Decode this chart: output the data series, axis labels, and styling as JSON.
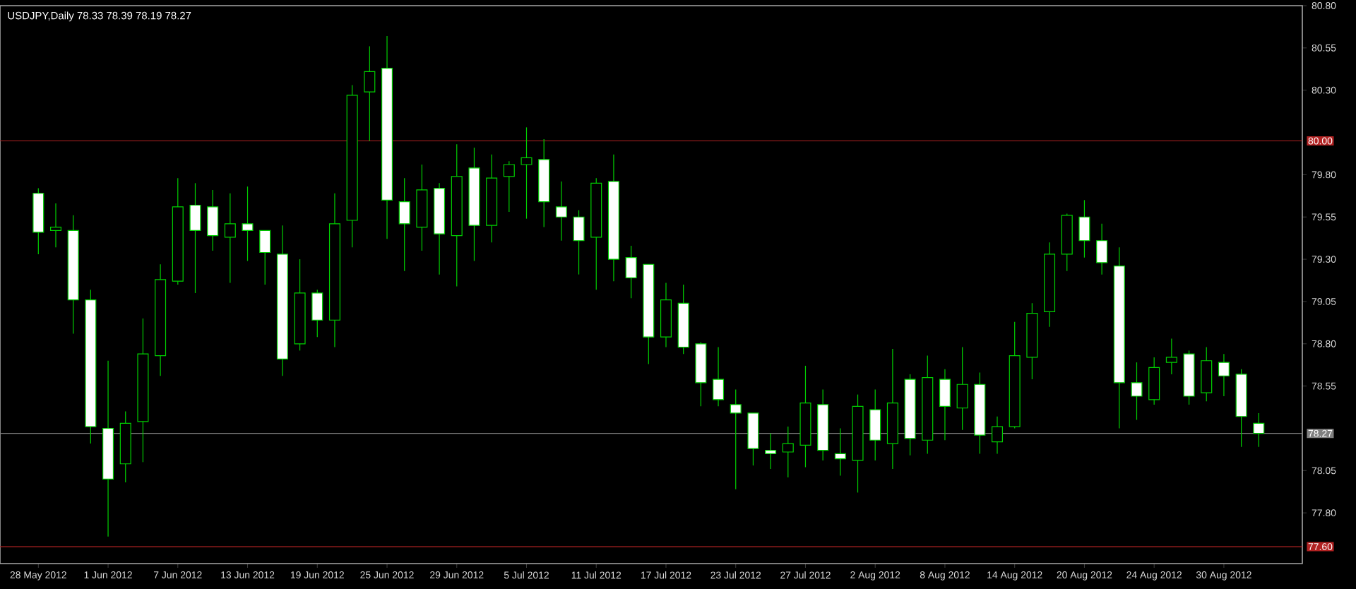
{
  "chart_data": {
    "type": "candlestick",
    "title": "USDJPY,Daily  78.33 78.39 78.19 78.27",
    "color": "#00d000",
    "categories": [
      "28 May 2012",
      null,
      null,
      null,
      "1 Jun 2012",
      null,
      null,
      null,
      "7 Jun 2012",
      null,
      null,
      null,
      "13 Jun 2012",
      null,
      null,
      null,
      "19 Jun 2012",
      null,
      null,
      null,
      "25 Jun 2012",
      null,
      null,
      null,
      "29 Jun 2012",
      null,
      null,
      null,
      "5 Jul 2012",
      null,
      null,
      null,
      "11 Jul 2012",
      null,
      null,
      null,
      "17 Jul 2012",
      null,
      null,
      null,
      "23 Jul 2012",
      null,
      null,
      null,
      "27 Jul 2012",
      null,
      null,
      null,
      "2 Aug 2012",
      null,
      null,
      null,
      "8 Aug 2012",
      null,
      null,
      null,
      "14 Aug 2012",
      null,
      null,
      null,
      "20 Aug 2012",
      null,
      null,
      null,
      "24 Aug 2012",
      null,
      null,
      null,
      "30 Aug 2012",
      null,
      null
    ],
    "ohlc": [
      [
        79.69,
        79.72,
        79.33,
        79.46
      ],
      [
        79.47,
        79.63,
        79.37,
        79.49
      ],
      [
        79.47,
        79.56,
        78.86,
        79.06
      ],
      [
        79.06,
        79.12,
        78.21,
        78.31
      ],
      [
        78.3,
        78.7,
        77.66,
        78.0
      ],
      [
        78.09,
        78.4,
        77.98,
        78.33
      ],
      [
        78.34,
        78.95,
        78.1,
        78.74
      ],
      [
        78.73,
        79.27,
        78.61,
        79.18
      ],
      [
        79.17,
        79.78,
        79.15,
        79.61
      ],
      [
        79.62,
        79.75,
        79.1,
        79.47
      ],
      [
        79.61,
        79.71,
        79.35,
        79.44
      ],
      [
        79.43,
        79.69,
        79.16,
        79.51
      ],
      [
        79.51,
        79.73,
        79.29,
        79.47
      ],
      [
        79.47,
        79.47,
        79.15,
        79.34
      ],
      [
        79.33,
        79.5,
        78.61,
        78.71
      ],
      [
        78.8,
        79.3,
        78.76,
        79.1
      ],
      [
        79.1,
        79.12,
        78.84,
        78.94
      ],
      [
        78.94,
        79.69,
        78.78,
        79.51
      ],
      [
        79.53,
        80.33,
        79.37,
        80.27
      ],
      [
        80.29,
        80.56,
        80.0,
        80.41
      ],
      [
        80.43,
        80.62,
        79.42,
        79.65
      ],
      [
        79.64,
        79.78,
        79.23,
        79.51
      ],
      [
        79.49,
        79.86,
        79.35,
        79.71
      ],
      [
        79.72,
        79.75,
        79.21,
        79.45
      ],
      [
        79.44,
        79.98,
        79.14,
        79.79
      ],
      [
        79.84,
        79.96,
        79.29,
        79.5
      ],
      [
        79.5,
        79.92,
        79.4,
        79.78
      ],
      [
        79.79,
        79.88,
        79.58,
        79.86
      ],
      [
        79.86,
        80.08,
        79.54,
        79.9
      ],
      [
        79.89,
        80.01,
        79.49,
        79.64
      ],
      [
        79.61,
        79.76,
        79.41,
        79.55
      ],
      [
        79.55,
        79.59,
        79.21,
        79.41
      ],
      [
        79.43,
        79.78,
        79.12,
        79.75
      ],
      [
        79.76,
        79.92,
        79.17,
        79.3
      ],
      [
        79.31,
        79.38,
        79.07,
        79.19
      ],
      [
        79.27,
        79.27,
        78.68,
        78.84
      ],
      [
        78.84,
        79.16,
        78.78,
        79.06
      ],
      [
        79.04,
        79.15,
        78.74,
        78.78
      ],
      [
        78.8,
        78.81,
        78.43,
        78.57
      ],
      [
        78.59,
        78.78,
        78.43,
        78.47
      ],
      [
        78.44,
        78.53,
        77.94,
        78.39
      ],
      [
        78.39,
        78.39,
        78.08,
        78.18
      ],
      [
        78.17,
        78.27,
        78.06,
        78.15
      ],
      [
        78.16,
        78.31,
        78.01,
        78.21
      ],
      [
        78.2,
        78.67,
        78.07,
        78.45
      ],
      [
        78.44,
        78.53,
        78.11,
        78.17
      ],
      [
        78.15,
        78.3,
        78.02,
        78.12
      ],
      [
        78.11,
        78.5,
        77.92,
        78.43
      ],
      [
        78.41,
        78.53,
        78.11,
        78.23
      ],
      [
        78.21,
        78.77,
        78.06,
        78.45
      ],
      [
        78.59,
        78.62,
        78.14,
        78.24
      ],
      [
        78.23,
        78.73,
        78.15,
        78.6
      ],
      [
        78.59,
        78.65,
        78.23,
        78.43
      ],
      [
        78.42,
        78.78,
        78.29,
        78.56
      ],
      [
        78.56,
        78.63,
        78.15,
        78.26
      ],
      [
        78.22,
        78.37,
        78.15,
        78.31
      ],
      [
        78.31,
        78.93,
        78.3,
        78.73
      ],
      [
        78.72,
        79.04,
        78.59,
        78.98
      ],
      [
        78.99,
        79.4,
        78.9,
        79.33
      ],
      [
        79.33,
        79.57,
        79.23,
        79.56
      ],
      [
        79.55,
        79.65,
        79.31,
        79.41
      ],
      [
        79.41,
        79.51,
        79.21,
        79.28
      ],
      [
        79.26,
        79.37,
        78.3,
        78.57
      ],
      [
        78.57,
        78.69,
        78.35,
        78.49
      ],
      [
        78.47,
        78.72,
        78.44,
        78.66
      ],
      [
        78.69,
        78.83,
        78.62,
        78.72
      ],
      [
        78.74,
        78.76,
        78.44,
        78.49
      ],
      [
        78.51,
        78.78,
        78.46,
        78.7
      ],
      [
        78.69,
        78.74,
        78.49,
        78.61
      ],
      [
        78.62,
        78.65,
        78.19,
        78.37
      ],
      [
        78.33,
        78.39,
        78.19,
        78.27
      ]
    ],
    "ylim": [
      77.5,
      80.8
    ],
    "yticks": [
      {
        "value": 80.8,
        "label": "80.80"
      },
      80.55,
      {
        "value": 80.3,
        "label": "80.30"
      },
      {
        "value": 79.8,
        "label": "79.80"
      },
      79.55,
      {
        "value": 79.3,
        "label": "79.30"
      },
      79.05,
      {
        "value": 78.8,
        "label": "78.80"
      },
      78.55,
      78.05,
      {
        "value": 77.8,
        "label": "77.80"
      }
    ],
    "ref_lines": [
      {
        "axis": "y",
        "value": 80.0,
        "label": "80.00",
        "color": "#b22222"
      },
      {
        "axis": "y",
        "value": 77.6,
        "label": "77.60",
        "color": "#b22222"
      },
      {
        "axis": "y",
        "value": 78.27,
        "label": "78.27",
        "color": "#808080"
      }
    ]
  }
}
